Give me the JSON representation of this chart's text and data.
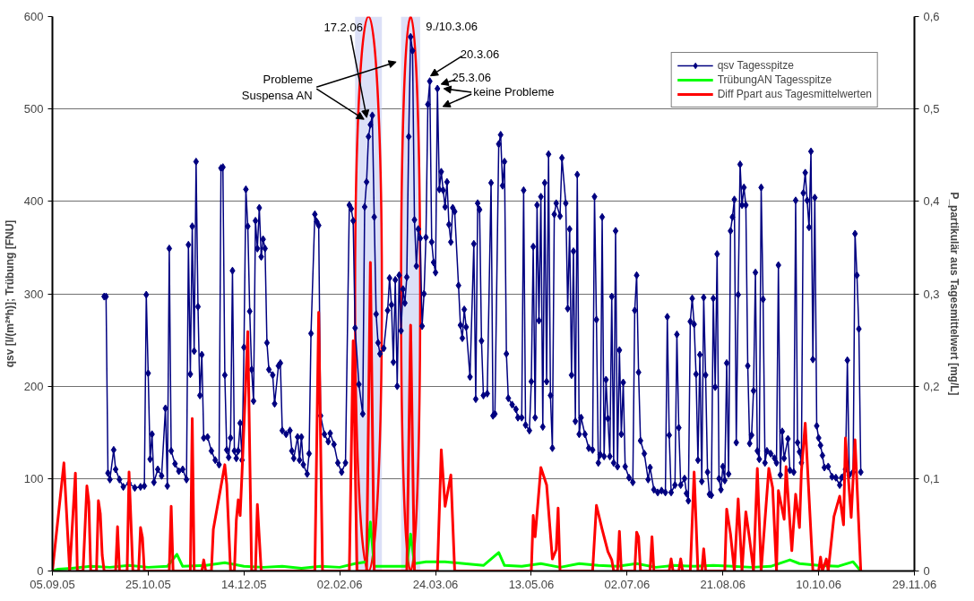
{
  "chart_data": {
    "type": "line",
    "ylabel": "qsv [l/(m²*h)]; Trübung [FNU]",
    "y2label": "P_partikulär aus Tagesmittelwert [mg/L]",
    "xlim": [
      "2005-09-05",
      "2006-11-29"
    ],
    "xticks": [
      {
        "value": "2005-09-05",
        "label": "05.09.05"
      },
      {
        "value": "2005-10-25",
        "label": "25.10.05"
      },
      {
        "value": "2005-12-14",
        "label": "14.12.05"
      },
      {
        "value": "2006-02-02",
        "label": "02.02.06"
      },
      {
        "value": "2006-03-24",
        "label": "24.03.06"
      },
      {
        "value": "2006-05-13",
        "label": "13.05.06"
      },
      {
        "value": "2006-07-02",
        "label": "02.07.06"
      },
      {
        "value": "2006-08-21",
        "label": "21.08.06"
      },
      {
        "value": "2006-10-10",
        "label": "10.10.06"
      },
      {
        "value": "2006-11-29",
        "label": "29.11.06"
      }
    ],
    "ylim": [
      0,
      600
    ],
    "yticks": [
      0,
      100,
      200,
      300,
      400,
      500,
      600
    ],
    "y2lim": [
      0,
      0.6
    ],
    "y2ticks": [
      0,
      {
        "value": 0.1,
        "label": "0,1"
      },
      {
        "value": 0.2,
        "label": "0,2"
      },
      {
        "value": 0.3,
        "label": "0,3"
      },
      {
        "value": 0.4,
        "label": "0,4"
      },
      {
        "value": 0.5,
        "label": "0,5"
      },
      {
        "value": 0.6,
        "label": "0,6"
      }
    ],
    "grid": "y",
    "legend": "top right",
    "bands": [
      {
        "axis": "x",
        "from": "2006-02-10",
        "to": "2006-02-24",
        "color": "#c5cbf2"
      },
      {
        "axis": "x",
        "from": "2006-03-06",
        "to": "2006-03-16",
        "color": "#c5cbf2"
      }
    ],
    "annotations": [
      {
        "text": "17.2.06",
        "x": "2006-02-17",
        "y": 483
      },
      {
        "text": "9./10.3.06",
        "x": "2006-03-10",
        "y": 578
      },
      {
        "text": "20.3.06",
        "x": "2006-03-20",
        "y": 530
      },
      {
        "text": "25.3.06",
        "x": "2006-03-25",
        "y": 522
      },
      {
        "text": "Probleme\nSuspensa AN",
        "x": "2006-02-17",
        "y": 483
      },
      {
        "text": "keine Probleme",
        "x": "2006-03-25",
        "y": 522
      }
    ],
    "series": [
      {
        "name": "qsv Tagesspitze",
        "color": "#000080",
        "marker": "diamond",
        "x": [
          "2005-10-02",
          "2005-10-03",
          "2005-10-04",
          "2005-10-05",
          "2005-10-07",
          "2005-10-08",
          "2005-10-10",
          "2005-10-12",
          "2005-10-15",
          "2005-10-18",
          "2005-10-21",
          "2005-10-23",
          "2005-10-24",
          "2005-10-25",
          "2005-10-26",
          "2005-10-27",
          "2005-10-28",
          "2005-10-30",
          "2005-11-01",
          "2005-11-03",
          "2005-11-04",
          "2005-11-05",
          "2005-11-06",
          "2005-11-08",
          "2005-11-10",
          "2005-11-12",
          "2005-11-14",
          "2005-11-15",
          "2005-11-16",
          "2005-11-17",
          "2005-11-18",
          "2005-11-19",
          "2005-11-20",
          "2005-11-21",
          "2005-11-22",
          "2005-11-23",
          "2005-11-25",
          "2005-11-27",
          "2005-11-29",
          "2005-12-01",
          "2005-12-02",
          "2005-12-03",
          "2005-12-04",
          "2005-12-05",
          "2005-12-06",
          "2005-12-07",
          "2005-12-08",
          "2005-12-09",
          "2005-12-10",
          "2005-12-11",
          "2005-12-12",
          "2005-12-13",
          "2005-12-14",
          "2005-12-15",
          "2005-12-16",
          "2005-12-17",
          "2005-12-18",
          "2005-12-19",
          "2005-12-20",
          "2005-12-21",
          "2005-12-22",
          "2005-12-23",
          "2005-12-24",
          "2005-12-25",
          "2005-12-26",
          "2005-12-27",
          "2005-12-29",
          "2005-12-30",
          "2006-01-01",
          "2006-01-02",
          "2006-01-03",
          "2006-01-05",
          "2006-01-07",
          "2006-01-08",
          "2006-01-09",
          "2006-01-11",
          "2006-01-12",
          "2006-01-13",
          "2006-01-14",
          "2006-01-16",
          "2006-01-17",
          "2006-01-18",
          "2006-01-20",
          "2006-01-21",
          "2006-01-22",
          "2006-01-23",
          "2006-01-25",
          "2006-01-27",
          "2006-01-28",
          "2006-01-30",
          "2006-02-01",
          "2006-02-03",
          "2006-02-05",
          "2006-02-07",
          "2006-02-08",
          "2006-02-09",
          "2006-02-10",
          "2006-02-12",
          "2006-02-14",
          "2006-02-15",
          "2006-02-16",
          "2006-02-17",
          "2006-02-18",
          "2006-02-19",
          "2006-02-20",
          "2006-02-21",
          "2006-02-22",
          "2006-02-23",
          "2006-02-25",
          "2006-02-27",
          "2006-02-28",
          "2006-03-01",
          "2006-03-02",
          "2006-03-03",
          "2006-03-04",
          "2006-03-05",
          "2006-03-06",
          "2006-03-07",
          "2006-03-08",
          "2006-03-09",
          "2006-03-10",
          "2006-03-11",
          "2006-03-12",
          "2006-03-13",
          "2006-03-14",
          "2006-03-15",
          "2006-03-16",
          "2006-03-17",
          "2006-03-18",
          "2006-03-19",
          "2006-03-20",
          "2006-03-21",
          "2006-03-22",
          "2006-03-23",
          "2006-03-24",
          "2006-03-25",
          "2006-03-26",
          "2006-03-27",
          "2006-03-28",
          "2006-03-29",
          "2006-03-30",
          "2006-03-31",
          "2006-04-01",
          "2006-04-02",
          "2006-04-03",
          "2006-04-05",
          "2006-04-06",
          "2006-04-07",
          "2006-04-08",
          "2006-04-09",
          "2006-04-11",
          "2006-04-13",
          "2006-04-14",
          "2006-04-15",
          "2006-04-16",
          "2006-04-17",
          "2006-04-18",
          "2006-04-20",
          "2006-04-22",
          "2006-04-23",
          "2006-04-24",
          "2006-04-26",
          "2006-04-27",
          "2006-04-28",
          "2006-04-29",
          "2006-04-30",
          "2006-05-01",
          "2006-05-03",
          "2006-05-05",
          "2006-05-06",
          "2006-05-08",
          "2006-05-09",
          "2006-05-10",
          "2006-05-12",
          "2006-05-13",
          "2006-05-14",
          "2006-05-15",
          "2006-05-16",
          "2006-05-17",
          "2006-05-18",
          "2006-05-19",
          "2006-05-20",
          "2006-05-21",
          "2006-05-22",
          "2006-05-23",
          "2006-05-24",
          "2006-05-25",
          "2006-05-26",
          "2006-05-28",
          "2006-05-29",
          "2006-05-31",
          "2006-06-01",
          "2006-06-02",
          "2006-06-03",
          "2006-06-04",
          "2006-06-05",
          "2006-06-06",
          "2006-06-07",
          "2006-06-08",
          "2006-06-10",
          "2006-06-12",
          "2006-06-14",
          "2006-06-15",
          "2006-06-16",
          "2006-06-17",
          "2006-06-18",
          "2006-06-19",
          "2006-06-20",
          "2006-06-21",
          "2006-06-22",
          "2006-06-23",
          "2006-06-24",
          "2006-06-25",
          "2006-06-26",
          "2006-06-27",
          "2006-06-28",
          "2006-06-29",
          "2006-06-30",
          "2006-07-01",
          "2006-07-03",
          "2006-07-05",
          "2006-07-06",
          "2006-07-07",
          "2006-07-08",
          "2006-07-09",
          "2006-07-11",
          "2006-07-13",
          "2006-07-14",
          "2006-07-16",
          "2006-07-18",
          "2006-07-20",
          "2006-07-22",
          "2006-07-23",
          "2006-07-24",
          "2006-07-25",
          "2006-07-27",
          "2006-07-28",
          "2006-07-29",
          "2006-07-30",
          "2006-08-01",
          "2006-08-02",
          "2006-08-03",
          "2006-08-04",
          "2006-08-05",
          "2006-08-06",
          "2006-08-07",
          "2006-08-08",
          "2006-08-09",
          "2006-08-10",
          "2006-08-11",
          "2006-08-12",
          "2006-08-13",
          "2006-08-14",
          "2006-08-15",
          "2006-08-16",
          "2006-08-17",
          "2006-08-18",
          "2006-08-19",
          "2006-08-20",
          "2006-08-21",
          "2006-08-22",
          "2006-08-23",
          "2006-08-24",
          "2006-08-25",
          "2006-08-26",
          "2006-08-27",
          "2006-08-28",
          "2006-08-29",
          "2006-08-30",
          "2006-08-31",
          "2006-09-01",
          "2006-09-02",
          "2006-09-03",
          "2006-09-04",
          "2006-09-05",
          "2006-09-06",
          "2006-09-07",
          "2006-09-08",
          "2006-09-09",
          "2006-09-10",
          "2006-09-11",
          "2006-09-12",
          "2006-09-13",
          "2006-09-15",
          "2006-09-17",
          "2006-09-18",
          "2006-09-19",
          "2006-09-20",
          "2006-09-21",
          "2006-09-22",
          "2006-09-24",
          "2006-09-25",
          "2006-09-27",
          "2006-09-28",
          "2006-09-29",
          "2006-09-30",
          "2006-10-01",
          "2006-10-02",
          "2006-10-03",
          "2006-10-04",
          "2006-10-05",
          "2006-10-06",
          "2006-10-07",
          "2006-10-08",
          "2006-10-09",
          "2006-10-10",
          "2006-10-11",
          "2006-10-12",
          "2006-10-13",
          "2006-10-15",
          "2006-10-17",
          "2006-10-19",
          "2006-10-21",
          "2006-10-22",
          "2006-10-24",
          "2006-10-25",
          "2006-10-26",
          "2006-10-28",
          "2006-10-29",
          "2006-10-30",
          "2006-10-31",
          "2006-11-01"
        ],
        "values": [
          297,
          297,
          106,
          99,
          131,
          110,
          99,
          91,
          95,
          90,
          91,
          92,
          299,
          214,
          121,
          148,
          96,
          110,
          103,
          176,
          92,
          349,
          130,
          116,
          108,
          110,
          99,
          353,
          213,
          373,
          238,
          443,
          286,
          190,
          234,
          144,
          145,
          130,
          120,
          115,
          436,
          437,
          212,
          131,
          123,
          144,
          325,
          130,
          122,
          130,
          160,
          120,
          242,
          413,
          373,
          281,
          218,
          184,
          379,
          349,
          393,
          340,
          359,
          349,
          247,
          218,
          212,
          181,
          222,
          225,
          152,
          148,
          152,
          130,
          122,
          145,
          120,
          145,
          115,
          105,
          127,
          257,
          386,
          378,
          374,
          168,
          148,
          140,
          149,
          137,
          117,
          107,
          117,
          396,
          392,
          379,
          263,
          202,
          170,
          394,
          421,
          470,
          483,
          493,
          383,
          278,
          247,
          235,
          241,
          282,
          317,
          288,
          226,
          315,
          200,
          320,
          260,
          305,
          290,
          318,
          470,
          578,
          563,
          380,
          330,
          370,
          360,
          265,
          300,
          361,
          505,
          530,
          356,
          334,
          323,
          522,
          413,
          432,
          412,
          394,
          421,
          375,
          356,
          393,
          389,
          309,
          266,
          252,
          283,
          264,
          210,
          354,
          186,
          398,
          391,
          249,
          190,
          192,
          420,
          168,
          170,
          462,
          472,
          417,
          443,
          235,
          187,
          180,
          175,
          166,
          166,
          412,
          158,
          152,
          205,
          351,
          166,
          396,
          271,
          405,
          156,
          420,
          205,
          451,
          190,
          133,
          386,
          398,
          384,
          447,
          398,
          284,
          370,
          212,
          346,
          162,
          429,
          148,
          166,
          148,
          133,
          131,
          405,
          272,
          117,
          126,
          383,
          124,
          207,
          165,
          124,
          297,
          117,
          368,
          113,
          239,
          148,
          204,
          113,
          101,
          96,
          282,
          320,
          215,
          141,
          127,
          99,
          112,
          88,
          85,
          87,
          85,
          275,
          147,
          85,
          93,
          256,
          155,
          93,
          100,
          84,
          76,
          270,
          295,
          267,
          213,
          120,
          234,
          97,
          296,
          212,
          107,
          83,
          82,
          295,
          199,
          343,
          100,
          88,
          113,
          98,
          225,
          105,
          368,
          383,
          402,
          139,
          299,
          440,
          396,
          415,
          396,
          222,
          138,
          147,
          195,
          323,
          130,
          121,
          415,
          294,
          117,
          130,
          127,
          122,
          117,
          331,
          104,
          151,
          122,
          143,
          109,
          107,
          401,
          139,
          129,
          117,
          409,
          431,
          401,
          372,
          454,
          229,
          404,
          157,
          144,
          136,
          125,
          112,
          113,
          102,
          101,
          93,
          101,
          110,
          228,
          104,
          107,
          365,
          320,
          262,
          107
        ]
      },
      {
        "name": "TrübungAN Tagesspitze",
        "color": "#00ff00",
        "x": [
          "2005-09-05",
          "2005-09-08",
          "2005-09-15",
          "2005-09-25",
          "2005-10-05",
          "2005-10-15",
          "2005-10-25",
          "2005-11-04",
          "2005-11-09",
          "2005-11-12",
          "2005-11-24",
          "2005-12-04",
          "2005-12-14",
          "2005-12-24",
          "2006-01-03",
          "2006-01-13",
          "2006-01-23",
          "2006-02-02",
          "2006-02-10",
          "2006-02-16",
          "2006-02-18",
          "2006-02-20",
          "2006-02-27",
          "2006-03-09",
          "2006-03-11",
          "2006-03-13",
          "2006-03-19",
          "2006-03-29",
          "2006-04-08",
          "2006-04-18",
          "2006-04-26",
          "2006-04-29",
          "2006-05-08",
          "2006-05-18",
          "2006-05-28",
          "2006-06-07",
          "2006-06-17",
          "2006-06-27",
          "2006-07-07",
          "2006-07-17",
          "2006-07-27",
          "2006-08-06",
          "2006-08-16",
          "2006-08-26",
          "2006-09-05",
          "2006-09-15",
          "2006-09-25",
          "2006-09-30",
          "2006-10-10",
          "2006-10-20",
          "2006-10-28",
          "2006-11-01"
        ],
        "values": [
          0,
          2,
          3,
          5,
          4,
          6,
          4,
          5,
          18,
          5,
          6,
          9,
          5,
          4,
          5,
          3,
          5,
          4,
          8,
          10,
          53,
          5,
          5,
          5,
          40,
          8,
          10,
          10,
          8,
          6,
          20,
          6,
          5,
          8,
          4,
          8,
          6,
          5,
          8,
          4,
          6,
          5,
          6,
          5,
          4,
          5,
          12,
          8,
          6,
          5,
          10,
          0
        ]
      },
      {
        "name": "Diff Ppart aus Tagesmittelwerten",
        "color": "#ff0000",
        "axis": "y2",
        "x": [
          "2005-09-05",
          "2005-09-11",
          "2005-09-14",
          "2005-09-17",
          "2005-09-18",
          "2005-09-21",
          "2005-09-23",
          "2005-09-24",
          "2005-09-25",
          "2005-09-28",
          "2005-09-29",
          "2005-09-30",
          "2005-10-01",
          "2005-10-02",
          "2005-10-08",
          "2005-10-09",
          "2005-10-10",
          "2005-10-14",
          "2005-10-15",
          "2005-10-17",
          "2005-10-20",
          "2005-10-21",
          "2005-10-22",
          "2005-10-23",
          "2005-11-05",
          "2005-11-06",
          "2005-11-07",
          "2005-11-16",
          "2005-11-17",
          "2005-11-18",
          "2005-11-22",
          "2005-11-23",
          "2005-11-24",
          "2005-11-27",
          "2005-11-28",
          "2005-12-04",
          "2005-12-05",
          "2005-12-07",
          "2005-12-09",
          "2005-12-10",
          "2005-12-11",
          "2005-12-12",
          "2005-12-13",
          "2005-12-16",
          "2005-12-18",
          "2005-12-20",
          "2005-12-21",
          "2005-12-23",
          "2006-01-20",
          "2006-01-22",
          "2006-01-24",
          "2006-02-07",
          "2006-02-09",
          "2006-02-11",
          "2006-02-16",
          "2006-02-18",
          "2006-02-20",
          "2006-03-09",
          "2006-03-11",
          "2006-03-13",
          "2006-03-25",
          "2006-03-27",
          "2006-03-29",
          "2006-04-01",
          "2006-04-03",
          "2006-05-13",
          "2006-05-14",
          "2006-05-15",
          "2006-05-18",
          "2006-05-21",
          "2006-05-24",
          "2006-05-26",
          "2006-05-27",
          "2006-05-28",
          "2006-06-14",
          "2006-06-16",
          "2006-06-19",
          "2006-06-22",
          "2006-06-24",
          "2006-06-25",
          "2006-06-27",
          "2006-06-28",
          "2006-06-29",
          "2006-07-06",
          "2006-07-07",
          "2006-07-08",
          "2006-07-09",
          "2006-07-14",
          "2006-07-15",
          "2006-07-16",
          "2006-07-24",
          "2006-07-25",
          "2006-07-26",
          "2006-07-29",
          "2006-07-30",
          "2006-07-31",
          "2006-08-04",
          "2006-08-06",
          "2006-08-08",
          "2006-08-10",
          "2006-08-11",
          "2006-08-12",
          "2006-08-22",
          "2006-08-23",
          "2006-08-25",
          "2006-08-27",
          "2006-08-29",
          "2006-08-31",
          "2006-09-02",
          "2006-09-04",
          "2006-09-06",
          "2006-09-08",
          "2006-09-10",
          "2006-09-14",
          "2006-09-16",
          "2006-09-18",
          "2006-09-19",
          "2006-09-22",
          "2006-09-23",
          "2006-09-26",
          "2006-09-28",
          "2006-09-30",
          "2006-10-01",
          "2006-10-03",
          "2006-10-07",
          "2006-10-10",
          "2006-10-11",
          "2006-10-12",
          "2006-10-14",
          "2006-10-15",
          "2006-10-18",
          "2006-10-21",
          "2006-10-23",
          "2006-10-24",
          "2006-10-27",
          "2006-10-29",
          "2006-11-01"
        ],
        "values": [
          0,
          0.117,
          0,
          0.106,
          0,
          0,
          0.092,
          0.075,
          0,
          0,
          0.076,
          0.062,
          0.017,
          0,
          0,
          0.048,
          0,
          0,
          0.107,
          0,
          0,
          0.047,
          0.036,
          0,
          0,
          0.07,
          0,
          0,
          0.165,
          0,
          0,
          0.012,
          0,
          0,
          0.045,
          0.115,
          0.094,
          0,
          0,
          0.055,
          0.077,
          0.06,
          0.107,
          0.259,
          0,
          0,
          0.072,
          0,
          0,
          0.28,
          0,
          0,
          0.249,
          0,
          0,
          0.334,
          0,
          0,
          0.266,
          0,
          0,
          0.131,
          0.07,
          0.104,
          0,
          0,
          0.06,
          0.037,
          0.112,
          0.093,
          0.013,
          0.023,
          0.068,
          0,
          0,
          0.071,
          0.045,
          0.021,
          0.012,
          0,
          0,
          0.043,
          0,
          0,
          0.042,
          0.037,
          0,
          0,
          0.037,
          0,
          0,
          0.013,
          0,
          0,
          0.013,
          0,
          0,
          0.107,
          0,
          0,
          0.024,
          0,
          0,
          0.067,
          0.04,
          0,
          0.078,
          0,
          0.064,
          0.034,
          0,
          0.111,
          0,
          0.111,
          0.09,
          0,
          0.087,
          0.056,
          0.113,
          0.022,
          0.083,
          0.047,
          0.108,
          0.16,
          0,
          0,
          0.015,
          0,
          0.013,
          0,
          0.059,
          0.081,
          0.05,
          0.144,
          0.058,
          0.142,
          0
        ]
      }
    ]
  }
}
